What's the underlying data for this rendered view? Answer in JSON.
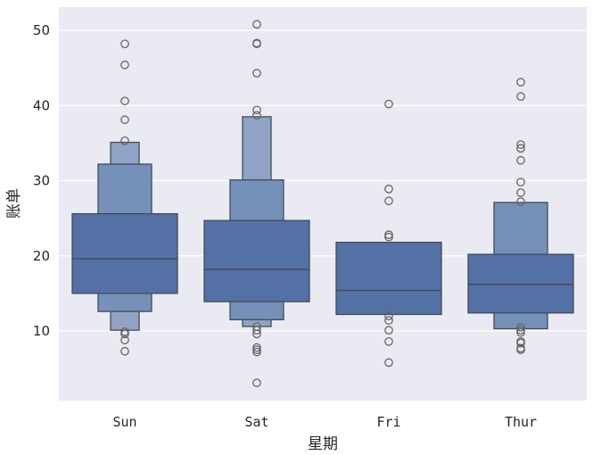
{
  "chart_data": {
    "type": "boxen",
    "title": "",
    "xlabel": "星期",
    "ylabel": "账单",
    "categories": [
      "Sun",
      "Sat",
      "Fri",
      "Thur"
    ],
    "yticks": [
      10,
      20,
      30,
      40,
      50
    ],
    "ylim": [
      0.9,
      53.2
    ],
    "grid": true,
    "legend": null,
    "colors": {
      "background": "#eaeaf2",
      "grid": "#ffffff",
      "box_levels": [
        "#5471a5",
        "#7590b9",
        "#8fa4c4"
      ],
      "edge": "#454a58",
      "outlier": "#666666"
    },
    "series": [
      {
        "name": "Sun",
        "median": 19.6,
        "levels": [
          {
            "low": 15.0,
            "high": 25.6
          },
          {
            "low": 12.6,
            "high": 32.2
          },
          {
            "low": 10.1,
            "high": 35.1
          }
        ],
        "outliers": [
          48.2,
          45.4,
          40.6,
          38.1,
          35.3,
          9.9,
          9.6,
          8.8,
          7.3
        ]
      },
      {
        "name": "Sat",
        "median": 18.2,
        "levels": [
          {
            "low": 13.9,
            "high": 24.7
          },
          {
            "low": 11.5,
            "high": 30.1
          },
          {
            "low": 10.6,
            "high": 38.5
          }
        ],
        "outliers": [
          50.8,
          48.3,
          48.2,
          44.3,
          39.4,
          38.7,
          10.6,
          10.1,
          9.6,
          7.8,
          7.5,
          7.2,
          3.1
        ]
      },
      {
        "name": "Fri",
        "median": 15.4,
        "levels": [
          {
            "low": 12.2,
            "high": 21.8
          }
        ],
        "outliers": [
          40.2,
          28.9,
          27.3,
          22.8,
          22.5,
          12.0,
          11.4,
          10.1,
          8.6,
          5.8
        ]
      },
      {
        "name": "Thur",
        "median": 16.2,
        "levels": [
          {
            "low": 12.4,
            "high": 20.2
          },
          {
            "low": 10.3,
            "high": 27.1
          }
        ],
        "outliers": [
          43.1,
          41.2,
          34.8,
          34.3,
          32.7,
          29.8,
          28.4,
          27.2,
          10.5,
          10.1,
          9.8,
          8.6,
          8.4,
          7.7,
          7.5
        ]
      }
    ]
  }
}
